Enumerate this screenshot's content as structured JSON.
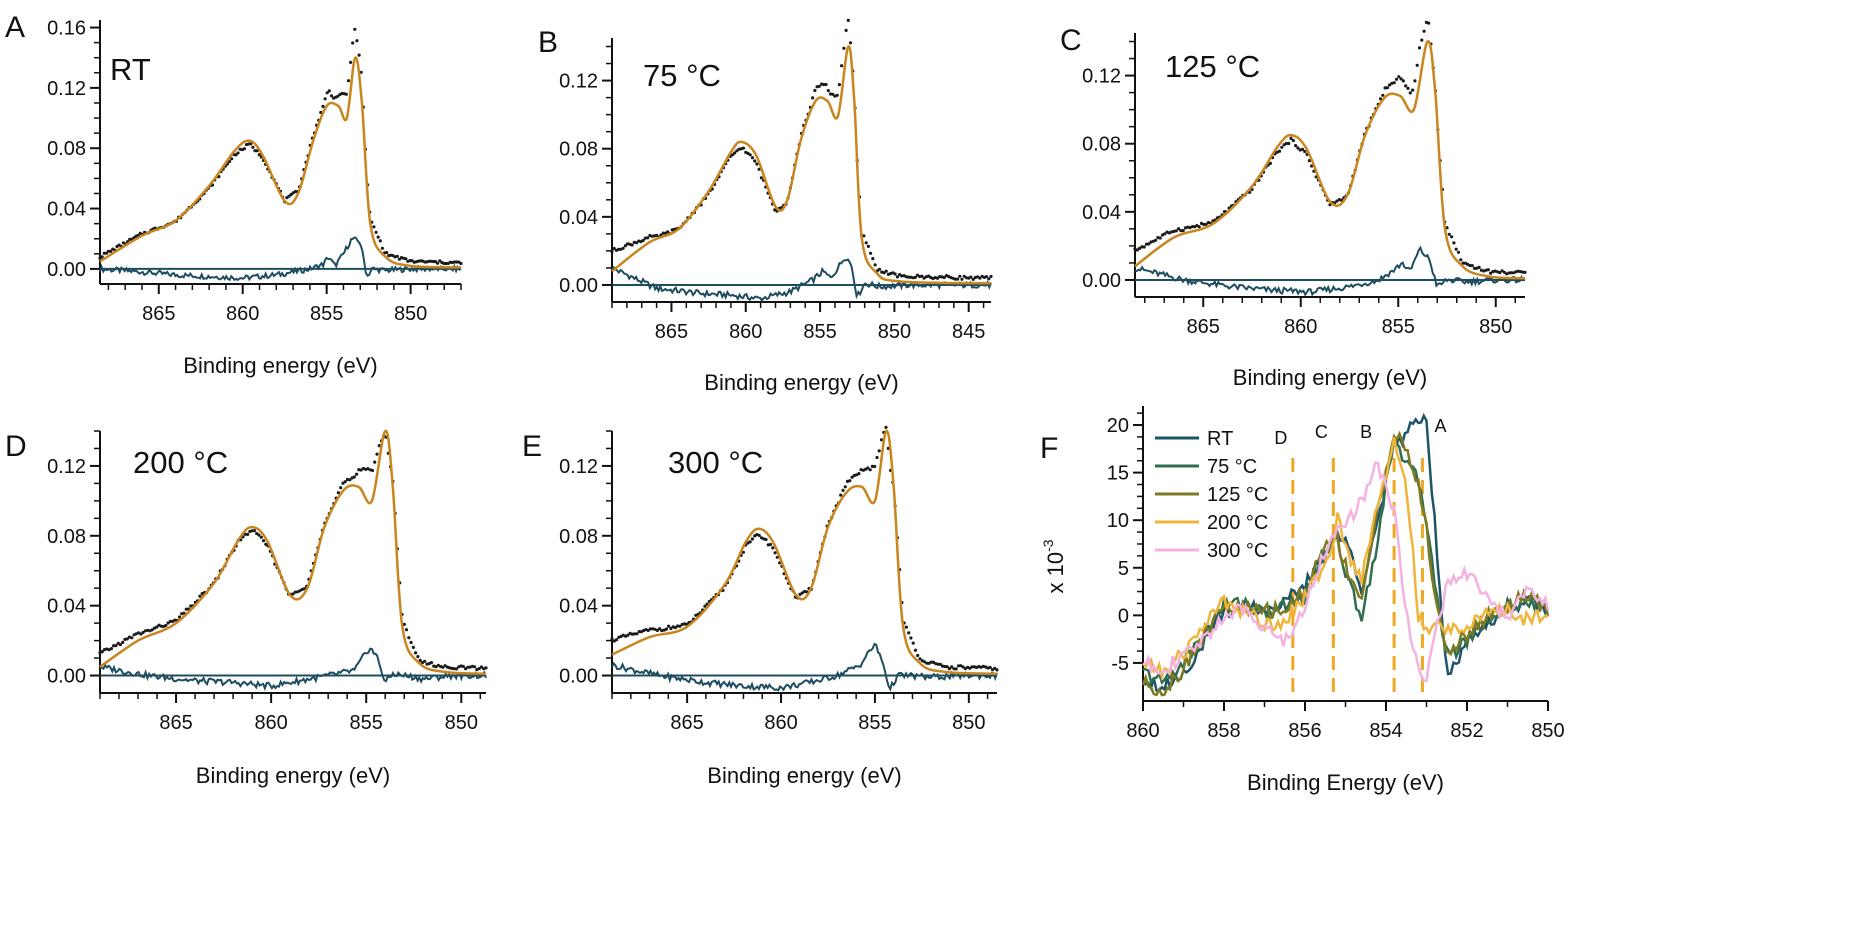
{
  "colors": {
    "data_dots": "#1b1b1b",
    "fit": "#c9851e",
    "residual": "#1f4d60",
    "zero_line": "#1f4d60",
    "marker_lines": "#f0a823",
    "axis": "#111111"
  },
  "chart_data": [
    {
      "panel": "A",
      "type": "line",
      "label": "RT",
      "xlabel": "Binding energy (eV)",
      "x_reversed": true,
      "xlim": [
        868.5,
        847
      ],
      "ylim": [
        -0.01,
        0.165
      ],
      "xticks": [
        865,
        860,
        855,
        850
      ],
      "yticks": [
        0.0,
        0.04,
        0.08,
        0.12,
        0.16
      ],
      "ytick_labels": [
        "0.00",
        "0.04",
        "0.08",
        "0.12",
        "0.16"
      ],
      "fit_center": 859.6,
      "main_peak": 853.3,
      "fit": {
        "x": [
          868.5,
          866,
          864,
          862,
          860.5,
          859.6,
          858.8,
          857.5,
          856.7,
          855.8,
          855.0,
          854.3,
          853.8,
          853.3,
          852.9,
          852.4,
          851.5,
          850,
          847
        ],
        "y": [
          0.005,
          0.022,
          0.032,
          0.055,
          0.078,
          0.085,
          0.075,
          0.045,
          0.05,
          0.085,
          0.108,
          0.108,
          0.1,
          0.14,
          0.11,
          0.03,
          0.008,
          0.002,
          0.001
        ]
      },
      "residual": {
        "x": [
          868.5,
          866,
          864,
          862,
          860,
          858,
          856,
          855.2,
          854.9,
          854.5,
          854.0,
          853.5,
          853.0,
          852.6,
          852.3,
          851.5,
          850,
          847
        ],
        "y": [
          0.0,
          -0.002,
          -0.004,
          -0.005,
          -0.006,
          -0.004,
          0.0,
          0.003,
          0.008,
          0.002,
          0.01,
          0.02,
          0.018,
          -0.005,
          0.0,
          -0.001,
          0.0,
          0.0
        ]
      }
    },
    {
      "panel": "B",
      "type": "line",
      "label": "75 °C",
      "xlabel": "Binding energy (eV)",
      "x_reversed": true,
      "xlim": [
        869,
        843.5
      ],
      "ylim": [
        -0.01,
        0.145
      ],
      "xticks": [
        865,
        860,
        855,
        850,
        845
      ],
      "yticks": [
        0.0,
        0.04,
        0.08,
        0.12
      ],
      "ytick_labels": [
        "0.00",
        "0.04",
        "0.08",
        "0.12"
      ],
      "fit_center": 860.3,
      "main_peak": 853.1,
      "fit": {
        "x": [
          869,
          866.5,
          864.5,
          862.5,
          861,
          860.3,
          859.3,
          858,
          857.2,
          856.3,
          855.3,
          854.5,
          853.8,
          853.1,
          852.7,
          852.2,
          851.2,
          849.5,
          843.5
        ],
        "y": [
          0.008,
          0.025,
          0.033,
          0.055,
          0.078,
          0.084,
          0.076,
          0.046,
          0.05,
          0.085,
          0.108,
          0.108,
          0.099,
          0.14,
          0.108,
          0.028,
          0.007,
          0.002,
          0.001
        ]
      },
      "residual": {
        "x": [
          869,
          866,
          863,
          861,
          859,
          857,
          855.5,
          854.8,
          854.3,
          853.8,
          853.3,
          852.9,
          852.5,
          852.0,
          851,
          849,
          843.5
        ],
        "y": [
          0.01,
          -0.002,
          -0.005,
          -0.006,
          -0.008,
          -0.004,
          0.003,
          0.008,
          0.004,
          0.01,
          0.017,
          0.012,
          -0.007,
          0.001,
          -0.001,
          0.0,
          0.0
        ]
      }
    },
    {
      "panel": "C",
      "type": "line",
      "label": "125 °C",
      "xlabel": "Binding energy (eV)",
      "x_reversed": true,
      "xlim": [
        868.5,
        848.5
      ],
      "ylim": [
        -0.01,
        0.145
      ],
      "xticks": [
        865,
        860,
        855,
        850
      ],
      "yticks": [
        0.0,
        0.04,
        0.08,
        0.12
      ],
      "ytick_labels": [
        "0.00",
        "0.04",
        "0.08",
        "0.12"
      ],
      "fit_center": 860.5,
      "main_peak": 853.5,
      "fit": {
        "x": [
          868.5,
          866.5,
          864.5,
          862.5,
          861.2,
          860.5,
          859.7,
          858.5,
          857.6,
          856.7,
          855.7,
          854.9,
          854.2,
          853.5,
          853.1,
          852.6,
          851.7,
          850.3,
          848.5
        ],
        "y": [
          0.008,
          0.025,
          0.033,
          0.055,
          0.078,
          0.085,
          0.077,
          0.046,
          0.05,
          0.085,
          0.107,
          0.108,
          0.1,
          0.14,
          0.11,
          0.03,
          0.008,
          0.002,
          0.001
        ]
      },
      "residual": {
        "x": [
          868.5,
          866,
          863.5,
          861.5,
          859.5,
          857.5,
          856,
          855.2,
          854.8,
          854.4,
          853.9,
          853.4,
          853.0,
          852.5,
          851.5,
          850,
          848.5
        ],
        "y": [
          0.007,
          0.0,
          -0.004,
          -0.006,
          -0.007,
          -0.004,
          0.0,
          0.006,
          0.01,
          0.005,
          0.018,
          0.012,
          -0.004,
          0.0,
          -0.001,
          0.0,
          0.0
        ]
      }
    },
    {
      "panel": "D",
      "type": "line",
      "label": "200 °C",
      "xlabel": "Binding energy (eV)",
      "x_reversed": true,
      "xlim": [
        869,
        848.7
      ],
      "ylim": [
        -0.01,
        0.14
      ],
      "xticks": [
        865,
        860,
        855,
        850
      ],
      "yticks": [
        0.0,
        0.04,
        0.08,
        0.12
      ],
      "ytick_labels": [
        "0.00",
        "0.04",
        "0.08",
        "0.12"
      ],
      "fit_center": 861.0,
      "main_peak": 854.0,
      "fit": {
        "x": [
          869,
          867,
          865,
          863,
          861.7,
          861.0,
          860.2,
          859,
          858.1,
          857.2,
          856.2,
          855.4,
          854.7,
          854.0,
          853.6,
          853.1,
          852.2,
          850.8,
          848.7
        ],
        "y": [
          0.005,
          0.02,
          0.03,
          0.053,
          0.078,
          0.085,
          0.077,
          0.046,
          0.05,
          0.085,
          0.106,
          0.108,
          0.1,
          0.14,
          0.108,
          0.028,
          0.007,
          0.002,
          0.001
        ]
      },
      "residual": {
        "x": [
          869,
          866.5,
          864,
          862,
          860,
          858.5,
          857,
          855.6,
          855.2,
          854.8,
          854.4,
          854.0,
          853.6,
          853.0,
          852,
          850.5,
          848.7
        ],
        "y": [
          0.005,
          0.0,
          -0.003,
          -0.004,
          -0.006,
          -0.003,
          0.0,
          0.003,
          0.01,
          0.016,
          0.01,
          -0.004,
          0.001,
          0.0,
          -0.002,
          0.0,
          0.0
        ]
      }
    },
    {
      "panel": "E",
      "type": "line",
      "label": "300 °C",
      "xlabel": "Binding energy (eV)",
      "x_reversed": true,
      "xlim": [
        869,
        848.5
      ],
      "ylim": [
        -0.01,
        0.14
      ],
      "xticks": [
        865,
        860,
        855,
        850
      ],
      "yticks": [
        0.0,
        0.04,
        0.08,
        0.12
      ],
      "ytick_labels": [
        "0.00",
        "0.04",
        "0.08",
        "0.12"
      ],
      "fit_center": 861.2,
      "main_peak": 854.4,
      "fit": {
        "x": [
          869,
          867,
          865,
          863,
          861.9,
          861.2,
          860.4,
          859.2,
          858.4,
          857.5,
          856.5,
          855.7,
          855.0,
          854.4,
          854.0,
          853.5,
          852.6,
          851.2,
          848.5
        ],
        "y": [
          0.012,
          0.022,
          0.028,
          0.052,
          0.076,
          0.084,
          0.076,
          0.046,
          0.05,
          0.085,
          0.105,
          0.108,
          0.1,
          0.14,
          0.108,
          0.028,
          0.007,
          0.002,
          0.001
        ]
      },
      "residual": {
        "x": [
          869,
          866.5,
          864,
          862,
          860,
          858.5,
          857,
          855.8,
          855.4,
          855.0,
          854.6,
          854.2,
          853.8,
          853.2,
          852,
          850.5,
          848.5
        ],
        "y": [
          0.006,
          0.0,
          -0.004,
          -0.006,
          -0.007,
          -0.004,
          0.0,
          0.006,
          0.012,
          0.018,
          0.008,
          -0.008,
          0.0,
          0.0,
          -0.001,
          0.0,
          0.0
        ]
      }
    },
    {
      "panel": "F",
      "type": "line",
      "label": "",
      "xlabel": "Binding Energy (eV)",
      "ylabel": "x 10",
      "ylabel_exp": "-3",
      "x_reversed": true,
      "xlim": [
        860,
        850
      ],
      "ylim": [
        -9,
        22
      ],
      "xticks": [
        860,
        858,
        856,
        854,
        852,
        850
      ],
      "yticks": [
        -5,
        0,
        5,
        10,
        15,
        20
      ],
      "ytick_labels": [
        "-5",
        "0",
        "5",
        "10",
        "15",
        "20"
      ],
      "markers": [
        {
          "label": "D",
          "x": 856.3
        },
        {
          "label": "C",
          "x": 855.3
        },
        {
          "label": "B",
          "x": 853.8
        },
        {
          "label": "A",
          "x": 853.1
        }
      ],
      "series": [
        {
          "name": "RT",
          "color": "#1e5468",
          "x": [
            860,
            859.5,
            859,
            858.5,
            858,
            857.5,
            857,
            856.5,
            856,
            855.5,
            855.2,
            854.9,
            854.6,
            854.2,
            853.8,
            853.5,
            853.2,
            853.0,
            852.8,
            852.5,
            852,
            851.5,
            851,
            850.5,
            850
          ],
          "y": [
            -6.5,
            -7.5,
            -6.0,
            -3.0,
            0.5,
            1.0,
            0.5,
            1.5,
            3.0,
            6.5,
            8.5,
            7.0,
            3.0,
            10.0,
            18.0,
            19.0,
            21.0,
            20.5,
            10.0,
            -6.0,
            -3.0,
            -1.0,
            1.0,
            1.5,
            0.5
          ]
        },
        {
          "name": "75 °C",
          "color": "#2f6e50",
          "x": [
            860,
            859.5,
            859,
            858.5,
            858,
            857.5,
            857,
            856.5,
            856,
            855.5,
            855.2,
            854.9,
            854.6,
            854.2,
            853.8,
            853.5,
            853.2,
            853.0,
            852.8,
            852.5,
            852,
            851.5,
            851,
            850.5,
            850
          ],
          "y": [
            -6.0,
            -7.0,
            -5.0,
            -2.0,
            1.0,
            1.5,
            0.0,
            1.0,
            2.0,
            7.0,
            8.0,
            3.0,
            0.0,
            8.0,
            19.0,
            16.0,
            14.0,
            10.0,
            4.0,
            -4.5,
            -2.5,
            -0.5,
            1.0,
            1.5,
            0.5
          ]
        },
        {
          "name": "125 °C",
          "color": "#7e7a22",
          "x": [
            860,
            859.5,
            859,
            858.5,
            858,
            857.5,
            857,
            856.5,
            856,
            855.5,
            855.2,
            854.9,
            854.6,
            854.2,
            853.8,
            853.5,
            853.2,
            853.0,
            852.8,
            852.5,
            852,
            851.5,
            851,
            850.5,
            850
          ],
          "y": [
            -7.0,
            -8.0,
            -5.5,
            -2.0,
            1.0,
            0.5,
            0.5,
            0.5,
            2.5,
            7.5,
            8.0,
            4.0,
            2.0,
            11.0,
            19.5,
            17.0,
            14.0,
            9.0,
            2.0,
            -4.0,
            -2.0,
            0.0,
            1.0,
            2.0,
            0.5
          ]
        },
        {
          "name": "200 °C",
          "color": "#f0b43a",
          "x": [
            860,
            859.5,
            859,
            858.5,
            858,
            857.5,
            857,
            856.5,
            856,
            855.5,
            855.2,
            854.9,
            854.6,
            854.2,
            853.8,
            853.5,
            853.2,
            853.0,
            852.8,
            852.5,
            852,
            851.5,
            851,
            850.5,
            850
          ],
          "y": [
            -5.0,
            -6.0,
            -4.0,
            -1.0,
            1.5,
            0.5,
            -1.0,
            -0.5,
            2.0,
            5.0,
            10.0,
            6.0,
            4.0,
            12.0,
            18.0,
            14.0,
            0.0,
            -2.0,
            -1.0,
            -1.5,
            -1.0,
            0.0,
            0.5,
            -0.5,
            0.5
          ]
        },
        {
          "name": "300 °C",
          "color": "#f4b2e1",
          "x": [
            860,
            859.5,
            859,
            858.5,
            858,
            857.5,
            857,
            856.5,
            856,
            855.5,
            855.2,
            854.9,
            854.6,
            854.2,
            853.8,
            853.5,
            853.2,
            853.0,
            852.8,
            852.5,
            852,
            851.5,
            851,
            850.5,
            850
          ],
          "y": [
            -5.0,
            -5.5,
            -4.5,
            -2.5,
            0.0,
            0.5,
            -1.0,
            -3.0,
            1.0,
            7.0,
            9.0,
            10.0,
            12.0,
            16.0,
            11.0,
            0.0,
            -5.0,
            -7.0,
            -2.0,
            3.0,
            4.5,
            1.5,
            0.0,
            2.5,
            1.0
          ]
        }
      ]
    }
  ]
}
